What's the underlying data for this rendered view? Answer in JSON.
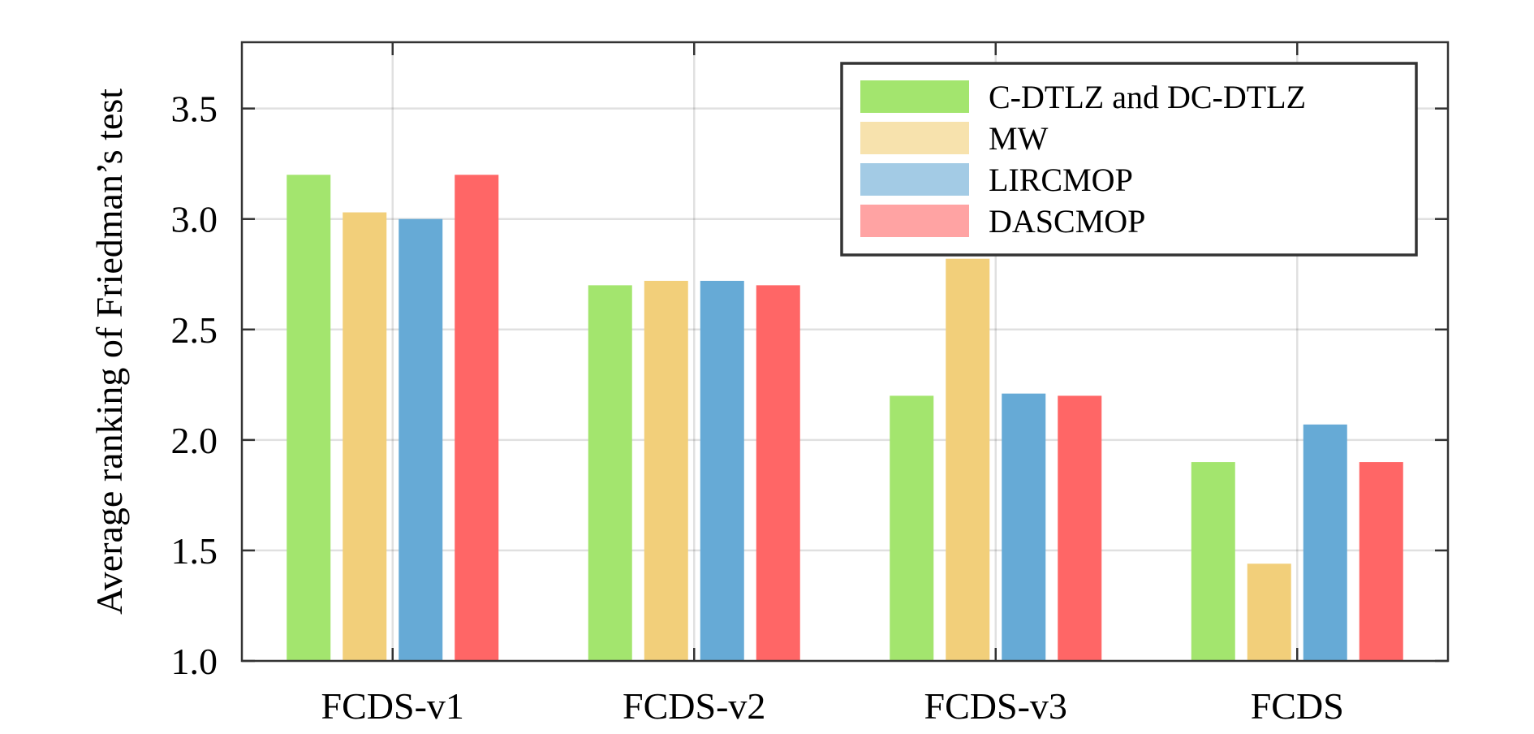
{
  "chart_data": {
    "type": "bar",
    "title": "",
    "xlabel": "",
    "ylabel": "Average ranking of Friedman’s test",
    "categories": [
      "FCDS-v1",
      "FCDS-v2",
      "FCDS-v3",
      "FCDS"
    ],
    "ylim": [
      1.0,
      3.8
    ],
    "yticks": [
      "1.0",
      "1.5",
      "2.0",
      "2.5",
      "3.0",
      "3.5"
    ],
    "grid": true,
    "legend_position": "top-right",
    "series": [
      {
        "name": "C-DTLZ and DC-DTLZ",
        "color": "#a3e56e",
        "legend_color": "#a3e56e",
        "values": [
          3.2,
          2.7,
          2.2,
          1.9
        ]
      },
      {
        "name": "MW",
        "color": "#f2cf7a",
        "legend_color": "#f7e2ad",
        "values": [
          3.03,
          2.72,
          2.82,
          1.44
        ]
      },
      {
        "name": "LIRCMOP",
        "color": "#66aad6",
        "legend_color": "#a3cbe5",
        "values": [
          3.0,
          2.72,
          2.21,
          2.07
        ]
      },
      {
        "name": "DASCMOP",
        "color": "#ff6666",
        "legend_color": "#ffa3a3",
        "values": [
          3.2,
          2.7,
          2.2,
          1.9
        ]
      }
    ]
  }
}
